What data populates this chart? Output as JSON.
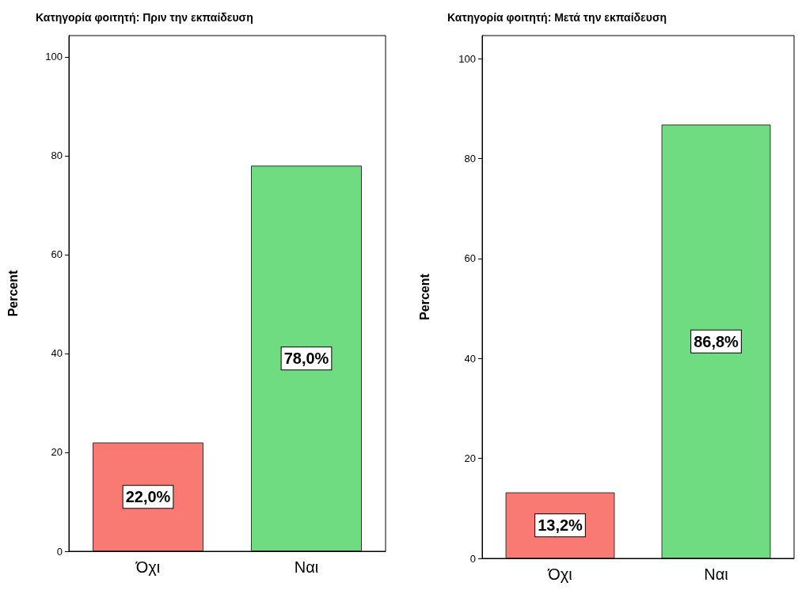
{
  "chart_data": [
    {
      "type": "bar",
      "title": "Κατηγορία φοιτητή: Πριν την εκπαίδευση",
      "ylabel": "Percent",
      "categories": [
        "Όχι",
        "Ναι"
      ],
      "values": [
        22.0,
        78.0
      ],
      "colors": [
        "#f87a72",
        "#70dc82"
      ],
      "value_labels": [
        "22,0%",
        "78,0%"
      ],
      "ylim": [
        0,
        104.3
      ],
      "yticks": [
        0,
        20,
        40,
        60,
        80,
        100
      ],
      "grid": false
    },
    {
      "type": "bar",
      "title": "Κατηγορία φοιτητή: Μετά την εκπαίδευση",
      "ylabel": "Percent",
      "categories": [
        "Όχι",
        "Ναι"
      ],
      "values": [
        13.2,
        86.8
      ],
      "colors": [
        "#f87a72",
        "#70dc82"
      ],
      "value_labels": [
        "13,2%",
        "86,8%"
      ],
      "ylim": [
        0,
        104.6
      ],
      "yticks": [
        0,
        20,
        40,
        60,
        80,
        100
      ],
      "grid": false
    }
  ]
}
